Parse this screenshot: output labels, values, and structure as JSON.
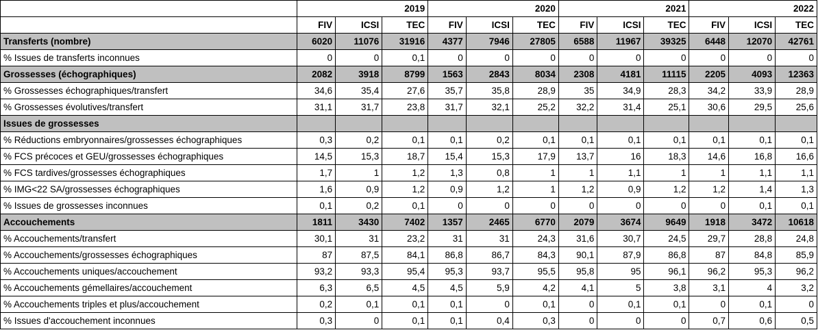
{
  "years": [
    "2019",
    "2020",
    "2021",
    "2022"
  ],
  "methods": [
    "FIV",
    "ICSI",
    "TEC"
  ],
  "rows": [
    {
      "label": "Transferts (nombre)",
      "bold": true,
      "grey": true,
      "values": [
        "6020",
        "11076",
        "31916",
        "4377",
        "7946",
        "27805",
        "6588",
        "11967",
        "39325",
        "6448",
        "12070",
        "42761"
      ]
    },
    {
      "label": "% Issues de transferts inconnues",
      "bold": false,
      "grey": false,
      "values": [
        "0",
        "0",
        "0,1",
        "0",
        "0",
        "0",
        "0",
        "0",
        "0",
        "0",
        "0",
        "0"
      ]
    },
    {
      "label": "Grossesses (échographiques)",
      "bold": true,
      "grey": true,
      "values": [
        "2082",
        "3918",
        "8799",
        "1563",
        "2843",
        "8034",
        "2308",
        "4181",
        "11115",
        "2205",
        "4093",
        "12363"
      ]
    },
    {
      "label": "% Grossesses échographiques/transfert",
      "bold": false,
      "grey": false,
      "values": [
        "34,6",
        "35,4",
        "27,6",
        "35,7",
        "35,8",
        "28,9",
        "35",
        "34,9",
        "28,3",
        "34,2",
        "33,9",
        "28,9"
      ]
    },
    {
      "label": "% Grossesses évolutives/transfert",
      "bold": false,
      "grey": false,
      "values": [
        "31,1",
        "31,7",
        "23,8",
        "31,7",
        "32,1",
        "25,2",
        "32,2",
        "31,4",
        "25,1",
        "30,6",
        "29,5",
        "25,6"
      ]
    },
    {
      "label": "Issues de grossesses",
      "bold": true,
      "grey": true,
      "values": [
        "",
        "",
        "",
        "",
        "",
        "",
        "",
        "",
        "",
        "",
        "",
        ""
      ]
    },
    {
      "label": "% Réductions embryonnaires/grossesses échographiques",
      "bold": false,
      "grey": false,
      "values": [
        "0,3",
        "0,2",
        "0,1",
        "0,1",
        "0,2",
        "0,1",
        "0,1",
        "0,1",
        "0,1",
        "0,1",
        "0,1",
        "0,1"
      ]
    },
    {
      "label": "% FCS précoces et GEU/grossesses échographiques",
      "bold": false,
      "grey": false,
      "values": [
        "14,5",
        "15,3",
        "18,7",
        "15,4",
        "15,3",
        "17,9",
        "13,7",
        "16",
        "18,3",
        "14,6",
        "16,8",
        "16,6"
      ]
    },
    {
      "label": "% FCS tardives/grossesses échographiques",
      "bold": false,
      "grey": false,
      "values": [
        "1,7",
        "1",
        "1,2",
        "1,3",
        "0,8",
        "1",
        "1",
        "1,1",
        "1",
        "1",
        "1,1",
        "1,1"
      ]
    },
    {
      "label": "% IMG<22 SA/grossesses échographiques",
      "bold": false,
      "grey": false,
      "values": [
        "1,6",
        "0,9",
        "1,2",
        "0,9",
        "1,2",
        "1",
        "1,2",
        "0,9",
        "1,2",
        "1,2",
        "1,4",
        "1,3"
      ]
    },
    {
      "label": "% Issues de grossesses inconnues",
      "bold": false,
      "grey": false,
      "values": [
        "0,1",
        "0,2",
        "0,1",
        "0",
        "0",
        "0",
        "0",
        "0",
        "0",
        "0",
        "0,1",
        "0,1"
      ]
    },
    {
      "label": "Accouchements",
      "bold": true,
      "grey": true,
      "values": [
        "1811",
        "3430",
        "7402",
        "1357",
        "2465",
        "6770",
        "2079",
        "3674",
        "9649",
        "1918",
        "3472",
        "10618"
      ]
    },
    {
      "label": "% Accouchements/transfert",
      "bold": false,
      "grey": false,
      "values": [
        "30,1",
        "31",
        "23,2",
        "31",
        "31",
        "24,3",
        "31,6",
        "30,7",
        "24,5",
        "29,7",
        "28,8",
        "24,8"
      ]
    },
    {
      "label": "% Accouchements/grossesses échographiques",
      "bold": false,
      "grey": false,
      "values": [
        "87",
        "87,5",
        "84,1",
        "86,8",
        "86,7",
        "84,3",
        "90,1",
        "87,9",
        "86,8",
        "87",
        "84,8",
        "85,9"
      ]
    },
    {
      "label": "% Accouchements uniques/accouchement",
      "bold": false,
      "grey": false,
      "values": [
        "93,2",
        "93,3",
        "95,4",
        "95,3",
        "93,7",
        "95,5",
        "95,8",
        "95",
        "96,1",
        "96,2",
        "95,3",
        "96,2"
      ]
    },
    {
      "label": "% Accouchements gémellaires/accouchement",
      "bold": false,
      "grey": false,
      "values": [
        "6,3",
        "6,5",
        "4,5",
        "4,5",
        "5,9",
        "4,2",
        "4,1",
        "5",
        "3,8",
        "3,1",
        "4",
        "3,2"
      ]
    },
    {
      "label": "% Accouchements triples et plus/accouchement",
      "bold": false,
      "grey": false,
      "values": [
        "0,2",
        "0,1",
        "0,1",
        "0,1",
        "0",
        "0,1",
        "0",
        "0,1",
        "0,1",
        "0",
        "0,1",
        "0"
      ]
    },
    {
      "label": "% Issues d'accouchement inconnues",
      "bold": false,
      "grey": false,
      "values": [
        "0,3",
        "0",
        "0,1",
        "0,1",
        "0,4",
        "0,3",
        "0",
        "0",
        "0",
        "0,7",
        "0,6",
        "0,5"
      ]
    }
  ]
}
